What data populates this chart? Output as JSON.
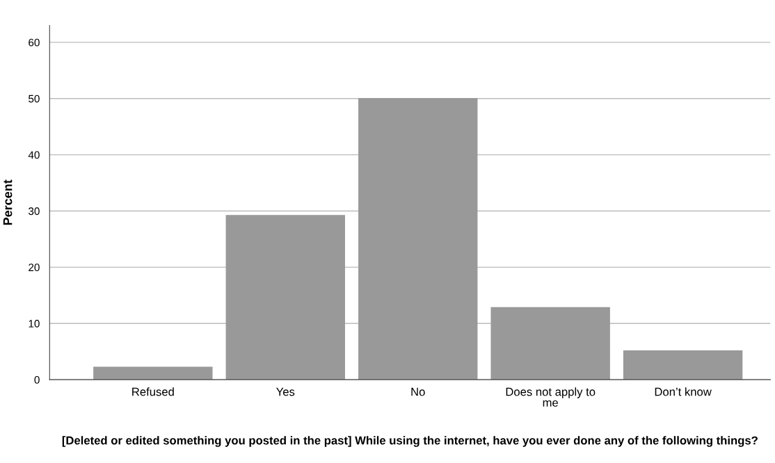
{
  "chart_data": {
    "type": "bar",
    "xlabel": "[Deleted or edited something you posted in the past] While using the internet, have you ever done any of the following things?",
    "ylabel": "Percent",
    "categories": [
      "Refused",
      "Yes",
      "No",
      "Does not apply to\nme",
      "Don’t know"
    ],
    "values": [
      2.3,
      29.3,
      50.1,
      12.9,
      5.2
    ],
    "color": "#999999",
    "ylim": [
      0,
      63
    ],
    "yticks": [
      0,
      10,
      20,
      30,
      40,
      50,
      60
    ],
    "grid": "y"
  }
}
